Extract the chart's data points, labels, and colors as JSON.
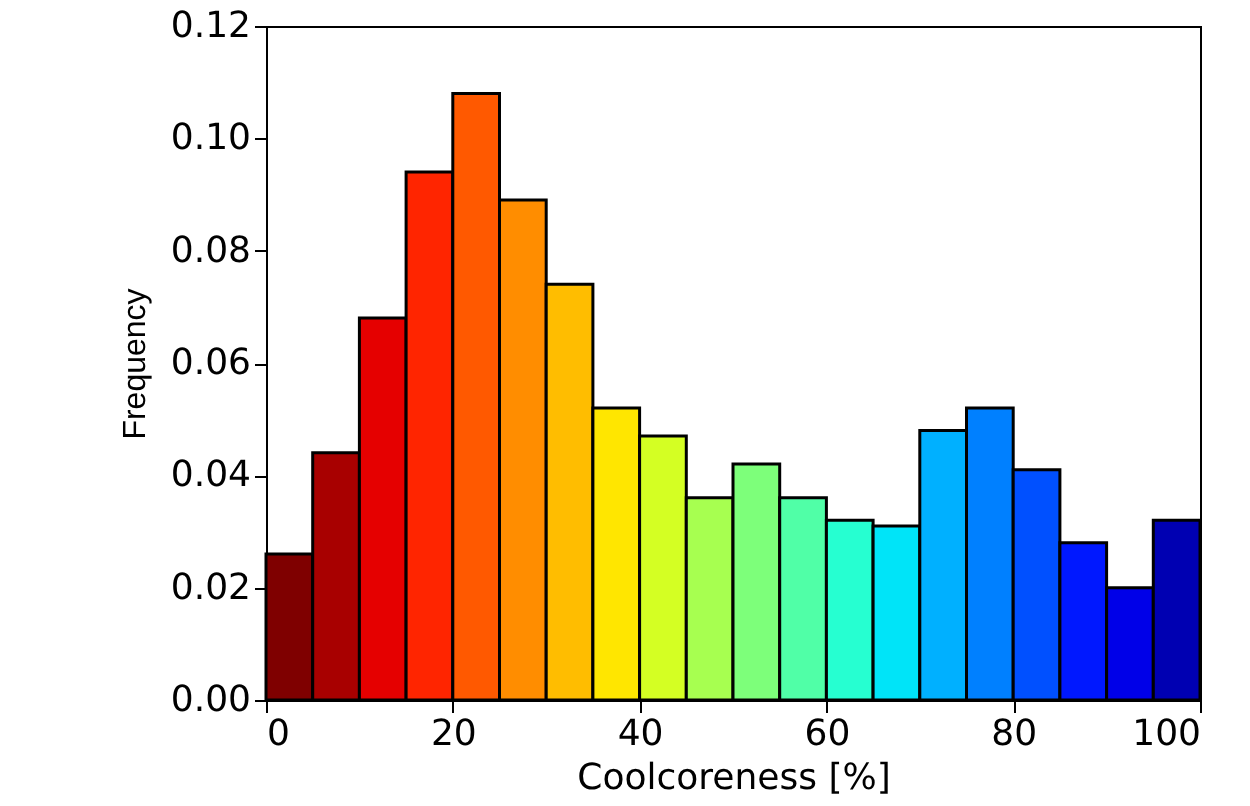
{
  "chart_data": {
    "type": "histogram",
    "xlabel": "Coolcoreness [%]",
    "ylabel": "Frequency",
    "bins": [
      0,
      5,
      10,
      15,
      20,
      25,
      30,
      35,
      40,
      45,
      50,
      55,
      60,
      65,
      70,
      75,
      80,
      85,
      90,
      95,
      100
    ],
    "values": [
      0.026,
      0.044,
      0.068,
      0.094,
      0.108,
      0.089,
      0.074,
      0.052,
      0.047,
      0.036,
      0.042,
      0.036,
      0.032,
      0.031,
      0.048,
      0.052,
      0.041,
      0.028,
      0.02,
      0.032
    ],
    "colors": [
      "#7f0000",
      "#a80000",
      "#e50000",
      "#ff2500",
      "#ff5900",
      "#ff8d00",
      "#ffbd00",
      "#ffe600",
      "#d4ff23",
      "#a7ff50",
      "#7dff7a",
      "#50ffa7",
      "#26ffd1",
      "#00e4f8",
      "#00b0ff",
      "#0080ff",
      "#0050ff",
      "#0018ff",
      "#0000e8",
      "#0000b2"
    ],
    "xlim": [
      0,
      100
    ],
    "xticks": [
      0,
      20,
      40,
      60,
      80,
      100
    ],
    "ylim": [
      0,
      0.12
    ],
    "yticks": [
      {
        "value": 0,
        "label": "0.00"
      },
      {
        "value": 0.02,
        "label": "0.02"
      },
      {
        "value": 0.04,
        "label": "0.04"
      },
      {
        "value": 0.06,
        "label": "0.06"
      },
      {
        "value": 0.08,
        "label": "0.08"
      },
      {
        "value": 0.1,
        "label": "0.10"
      },
      {
        "value": 0.12,
        "label": "0.12"
      }
    ],
    "grid": false
  }
}
